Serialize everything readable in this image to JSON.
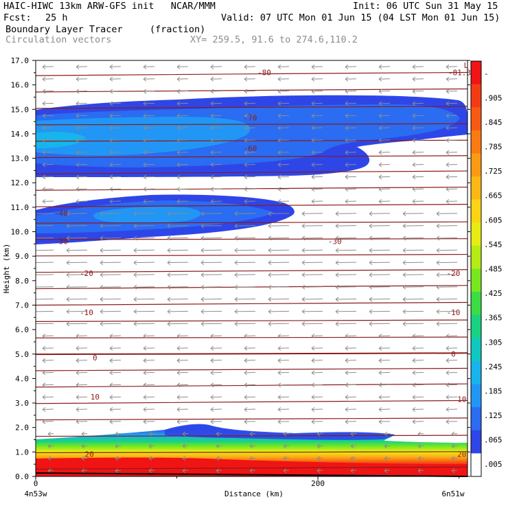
{
  "header": {
    "model_line": "HAIC-HIWC 13km ARW-GFS init   NCAR/MMM",
    "init_line": "Init: 06 UTC Sun 31 May 15",
    "fcst_label": "Fcst:",
    "fcst_value": "25 h",
    "valid_line": "Valid: 07 UTC Mon 01 Jun 15 (04 LST Mon 01 Jun 15)",
    "field_name": "Boundary Layer Tracer",
    "field_units": "(fraction)",
    "overlay_name": "Circulation vectors",
    "xy_line": "XY= 259.5, 91.6 to 274.6,110.2"
  },
  "chart_data": {
    "type": "heatmap",
    "ylabel": "Height (km)",
    "xlabel": "Distance (km)",
    "ylim": [
      0,
      17
    ],
    "xlim": [
      0,
      306
    ],
    "y_ticks": [
      "0.0",
      "1.0",
      "2.0",
      "3.0",
      "4.0",
      "5.0",
      "6.0",
      "7.0",
      "8.0",
      "9.0",
      "10.0",
      "11.0",
      "12.0",
      "13.0",
      "14.0",
      "15.0",
      "16.0",
      "17.0"
    ],
    "x_ticks": [
      {
        "value": 0,
        "label": "0"
      },
      {
        "value": 200,
        "label": "200"
      }
    ],
    "x_end_labels": {
      "left": "4n53w",
      "right": "6n51w"
    },
    "colorbar": {
      "labels": [
        "-",
        ".905",
        ".845",
        ".785",
        ".725",
        ".665",
        ".605",
        ".545",
        ".485",
        ".425",
        ".365",
        ".305",
        ".245",
        ".185",
        ".125",
        ".065",
        ".005"
      ],
      "colors": [
        "#f01414",
        "#f43c14",
        "#f85a14",
        "#fb7a14",
        "#fc9a14",
        "#fdb814",
        "#fcd414",
        "#e8ec14",
        "#b4ec14",
        "#78e81e",
        "#3cdc46",
        "#18d282",
        "#10c8c0",
        "#18b4ec",
        "#2296f4",
        "#2a6cf2",
        "#2e46e8",
        "#ffffff"
      ]
    },
    "contour_labels": [
      {
        "text": "-80",
        "x": 162,
        "y": 16.45
      },
      {
        "text": "-81.34",
        "x": 302,
        "y": 16.45
      },
      {
        "text": "L",
        "x": 305,
        "y": 16.75
      },
      {
        "text": "-70",
        "x": 152,
        "y": 14.6
      },
      {
        "text": "-60",
        "x": 152,
        "y": 13.35
      },
      {
        "text": "-40",
        "x": 18,
        "y": 10.7
      },
      {
        "text": "-30",
        "x": 18,
        "y": 9.55
      },
      {
        "text": "-30",
        "x": 212,
        "y": 9.55
      },
      {
        "text": "-20",
        "x": 36,
        "y": 8.25
      },
      {
        "text": "-20",
        "x": 296,
        "y": 8.25
      },
      {
        "text": "-10",
        "x": 36,
        "y": 6.65
      },
      {
        "text": "-10",
        "x": 296,
        "y": 6.65
      },
      {
        "text": "0",
        "x": 42,
        "y": 4.8
      },
      {
        "text": "0",
        "x": 296,
        "y": 4.95
      },
      {
        "text": "10",
        "x": 42,
        "y": 3.2
      },
      {
        "text": "10",
        "x": 302,
        "y": 3.1
      },
      {
        "text": "20",
        "x": 38,
        "y": 0.85
      },
      {
        "text": "20",
        "x": 302,
        "y": 0.85
      }
    ]
  }
}
